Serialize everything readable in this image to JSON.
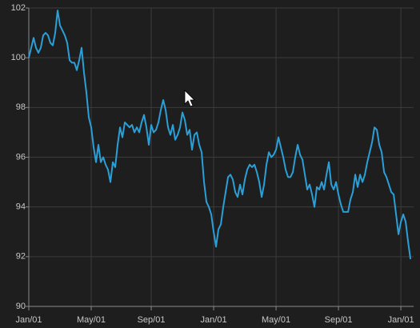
{
  "chart_data": {
    "type": "line",
    "color": "#2a9fd8",
    "grid": true,
    "ylim": [
      90,
      102
    ],
    "yticks": [
      90,
      92,
      94,
      96,
      98,
      100,
      102
    ],
    "xlim": [
      0,
      160.3
    ],
    "xticks": [
      {
        "value": 0,
        "label": "Jan/01"
      },
      {
        "value": 26,
        "label": "May/01"
      },
      {
        "value": 51,
        "label": "Sep/01"
      },
      {
        "value": 77,
        "label": "Jan/01"
      },
      {
        "value": 103,
        "label": "May/01"
      },
      {
        "value": 129,
        "label": "Sep/01"
      },
      {
        "value": 155,
        "label": "Jan/01"
      }
    ],
    "values": [
      100.0,
      100.4,
      100.8,
      100.4,
      100.2,
      100.4,
      100.9,
      101.0,
      100.9,
      100.6,
      100.5,
      101.0,
      101.9,
      101.3,
      101.1,
      100.9,
      100.6,
      99.9,
      99.8,
      99.8,
      99.5,
      99.9,
      100.4,
      99.4,
      98.6,
      97.6,
      97.2,
      96.4,
      95.8,
      96.5,
      95.8,
      96.0,
      95.7,
      95.5,
      95.0,
      95.8,
      95.6,
      96.5,
      97.2,
      96.8,
      97.4,
      97.3,
      97.2,
      97.3,
      97.0,
      97.2,
      97.0,
      97.4,
      97.7,
      97.2,
      96.5,
      97.3,
      97.0,
      97.1,
      97.4,
      97.9,
      98.3,
      97.9,
      97.2,
      96.9,
      97.3,
      96.7,
      96.9,
      97.2,
      97.8,
      97.5,
      96.9,
      97.1,
      96.3,
      96.9,
      97.0,
      96.5,
      96.2,
      95.0,
      94.2,
      94.0,
      93.7,
      93.0,
      92.4,
      93.1,
      93.3,
      94.0,
      94.6,
      95.2,
      95.3,
      95.1,
      94.6,
      94.4,
      94.9,
      94.5,
      95.1,
      95.5,
      95.7,
      95.6,
      95.7,
      95.4,
      95.0,
      94.4,
      94.9,
      95.7,
      96.2,
      96.0,
      96.1,
      96.3,
      96.8,
      96.4,
      96.0,
      95.5,
      95.2,
      95.2,
      95.4,
      96.0,
      96.5,
      96.1,
      95.9,
      95.3,
      94.7,
      94.9,
      94.5,
      94.0,
      94.8,
      94.7,
      95.0,
      94.7,
      95.3,
      95.8,
      94.9,
      94.7,
      95.0,
      94.5,
      94.1,
      93.8,
      93.8,
      93.8,
      94.3,
      94.6,
      95.3,
      94.8,
      95.3,
      95.0,
      95.3,
      95.8,
      96.2,
      96.6,
      97.2,
      97.1,
      96.5,
      96.2,
      95.4,
      95.2,
      94.9,
      94.6,
      94.5,
      93.7,
      92.9,
      93.4,
      93.7,
      93.4,
      92.6,
      91.9
    ]
  }
}
